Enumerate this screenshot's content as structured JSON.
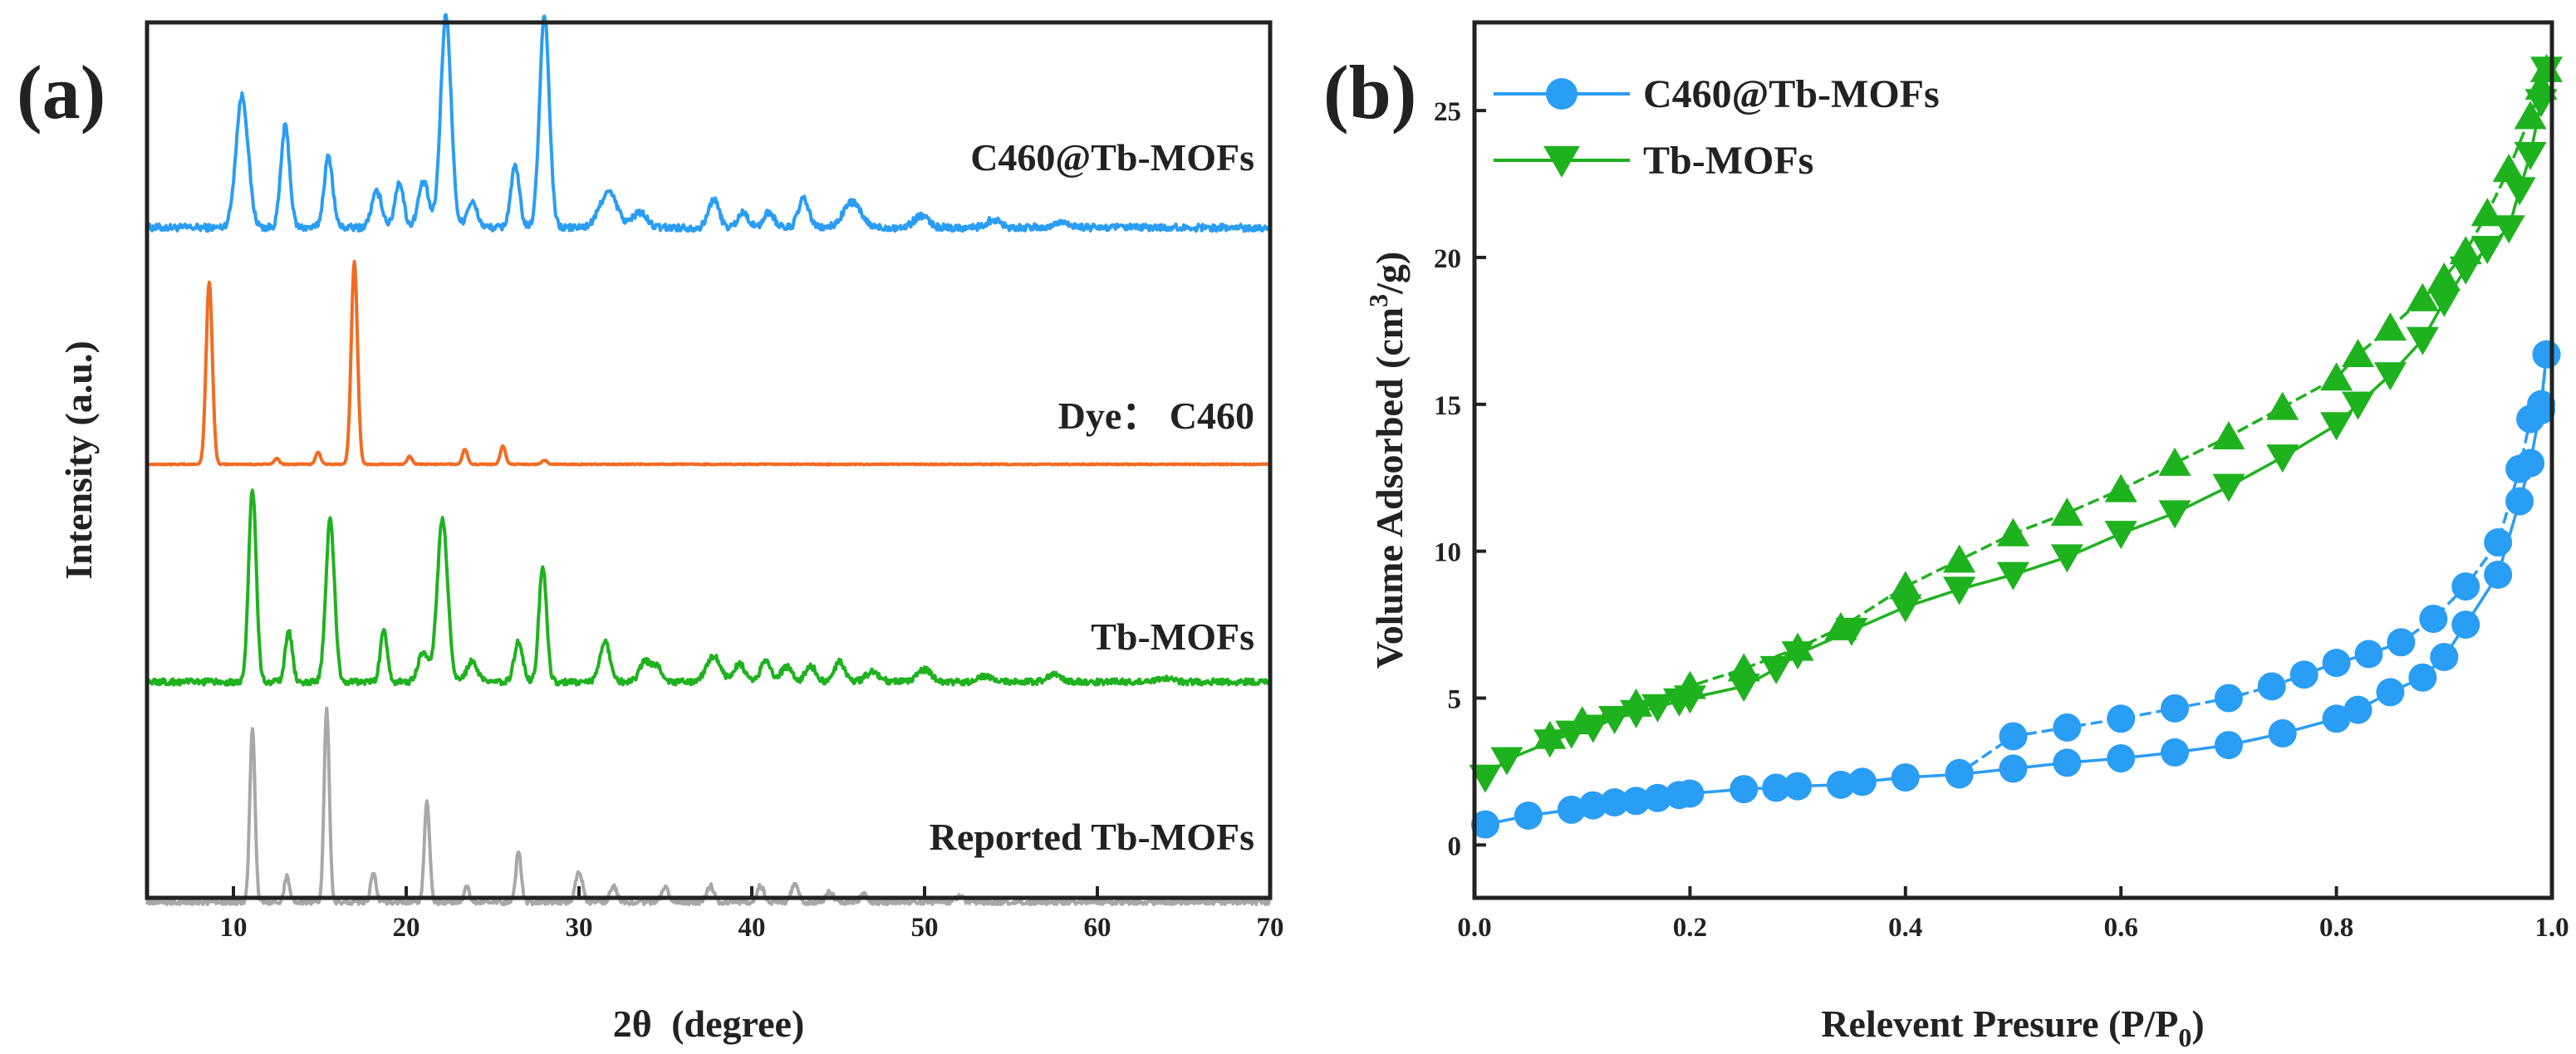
{
  "chart_data": [
    {
      "panel_label": "(a)",
      "type": "line",
      "xlabel_main": "2θ",
      "xlabel_unit": "(degree)",
      "ylabel": "Intensity (a.u.)",
      "xlim": [
        5,
        70
      ],
      "xticks": [
        "10",
        "20",
        "30",
        "40",
        "50",
        "60",
        "70"
      ],
      "grid": false,
      "series": [
        {
          "name": "C460@Tb-MOFs",
          "color": "#2a9df4",
          "baseline": 300,
          "noise": 0.35,
          "peaks": [
            [
              10.5,
              13,
              0.35
            ],
            [
              13.0,
              10,
              0.25
            ],
            [
              15.5,
              7,
              0.25
            ],
            [
              18.3,
              3.5,
              0.3
            ],
            [
              19.6,
              4.5,
              0.25
            ],
            [
              21.0,
              4.5,
              0.3
            ],
            [
              22.3,
              21,
              0.3
            ],
            [
              23.8,
              2.5,
              0.3
            ],
            [
              26.3,
              6,
              0.25
            ],
            [
              28.0,
              21,
              0.28
            ],
            [
              31.7,
              3.5,
              0.5
            ],
            [
              33.5,
              1.5,
              0.4
            ],
            [
              37.8,
              2.8,
              0.3
            ],
            [
              39.5,
              1.5,
              0.3
            ],
            [
              41.0,
              1.5,
              0.3
            ],
            [
              43.0,
              2.8,
              0.3
            ],
            [
              45.8,
              2.5,
              0.5
            ],
            [
              49.8,
              1.2,
              0.4
            ],
            [
              54.0,
              0.8,
              0.4
            ],
            [
              58.0,
              0.6,
              0.4
            ]
          ]
        },
        {
          "name": "Dye： C460",
          "color": "#f26b21",
          "baseline": 200,
          "noise": 0.05,
          "peaks": [
            [
              8.6,
              18,
              0.18
            ],
            [
              12.5,
              0.6,
              0.15
            ],
            [
              14.9,
              1.2,
              0.15
            ],
            [
              17.0,
              20,
              0.18
            ],
            [
              20.2,
              0.8,
              0.15
            ],
            [
              23.4,
              1.5,
              0.15
            ],
            [
              25.6,
              1.8,
              0.15
            ],
            [
              28.0,
              0.4,
              0.15
            ]
          ]
        },
        {
          "name": "Tb-MOFs",
          "color": "#1fb21f",
          "baseline": 100,
          "noise": 0.3,
          "peaks": [
            [
              11.1,
              19,
              0.22
            ],
            [
              13.2,
              5,
              0.2
            ],
            [
              15.6,
              16,
              0.25
            ],
            [
              18.7,
              5,
              0.2
            ],
            [
              21.0,
              3,
              0.3
            ],
            [
              22.1,
              16,
              0.3
            ],
            [
              23.8,
              2,
              0.3
            ],
            [
              26.5,
              4,
              0.25
            ],
            [
              27.9,
              11.5,
              0.22
            ],
            [
              31.5,
              4,
              0.3
            ],
            [
              33.8,
              2,
              0.3
            ],
            [
              34.5,
              1.5,
              0.3
            ],
            [
              37.8,
              2.5,
              0.4
            ],
            [
              39.3,
              1.8,
              0.3
            ],
            [
              40.8,
              2,
              0.3
            ],
            [
              42.0,
              1.5,
              0.3
            ],
            [
              43.4,
              1.6,
              0.3
            ],
            [
              45.1,
              2,
              0.3
            ],
            [
              47.0,
              1.0,
              0.4
            ],
            [
              50.0,
              1.2,
              0.4
            ],
            [
              53.5,
              0.6,
              0.4
            ],
            [
              57.5,
              0.8,
              0.4
            ],
            [
              64.0,
              0.4,
              0.4
            ]
          ]
        },
        {
          "name": "Reported Tb-MOFs",
          "color": "#a8a8a8",
          "baseline": 0,
          "noise": 0.25,
          "peaks": [
            [
              11.1,
              17,
              0.15
            ],
            [
              13.1,
              2.5,
              0.15
            ],
            [
              15.4,
              19,
              0.15
            ],
            [
              18.1,
              3,
              0.15
            ],
            [
              21.2,
              10,
              0.15
            ],
            [
              23.5,
              1.5,
              0.15
            ],
            [
              26.5,
              5,
              0.15
            ],
            [
              30.0,
              3,
              0.2
            ],
            [
              32.0,
              1.5,
              0.2
            ],
            [
              35.0,
              1.5,
              0.2
            ],
            [
              37.6,
              1.6,
              0.2
            ],
            [
              40.5,
              1.6,
              0.2
            ],
            [
              42.5,
              1.8,
              0.2
            ],
            [
              44.5,
              1.0,
              0.2
            ],
            [
              46.5,
              0.8,
              0.2
            ],
            [
              52.0,
              0.6,
              0.2
            ]
          ]
        }
      ]
    },
    {
      "panel_label": "(b)",
      "type": "line",
      "xlabel_main": "Relevent Presure (P/P",
      "xlabel_sub": "0",
      "xlabel_end": ")",
      "ylabel_main": "Volume Adsorbed (cm",
      "ylabel_sup": "3",
      "ylabel_end": "/g)",
      "xlim": [
        0.0,
        1.0
      ],
      "ylim": [
        -1.8,
        28
      ],
      "xticks": [
        "0.0",
        "0.2",
        "0.4",
        "0.6",
        "0.8",
        "1.0"
      ],
      "yticks": [
        "0",
        "5",
        "10",
        "15",
        "20",
        "25"
      ],
      "grid": false,
      "legend_position": "top-left",
      "series": [
        {
          "name": "C460@Tb-MOFs",
          "color": "#2a9df4",
          "marker": "circle",
          "adsorption": [
            [
              0.01,
              0.7
            ],
            [
              0.05,
              1.0
            ],
            [
              0.09,
              1.2
            ],
            [
              0.11,
              1.35
            ],
            [
              0.13,
              1.45
            ],
            [
              0.15,
              1.5
            ],
            [
              0.17,
              1.6
            ],
            [
              0.19,
              1.7
            ],
            [
              0.2,
              1.75
            ],
            [
              0.25,
              1.9
            ],
            [
              0.28,
              1.95
            ],
            [
              0.3,
              2.0
            ],
            [
              0.34,
              2.05
            ],
            [
              0.36,
              2.15
            ],
            [
              0.4,
              2.3
            ],
            [
              0.45,
              2.4
            ],
            [
              0.5,
              2.6
            ],
            [
              0.55,
              2.8
            ],
            [
              0.6,
              2.95
            ],
            [
              0.65,
              3.15
            ],
            [
              0.7,
              3.4
            ],
            [
              0.75,
              3.8
            ],
            [
              0.8,
              4.3
            ],
            [
              0.82,
              4.6
            ],
            [
              0.85,
              5.2
            ],
            [
              0.88,
              5.7
            ],
            [
              0.9,
              6.4
            ],
            [
              0.92,
              7.5
            ],
            [
              0.95,
              9.2
            ],
            [
              0.97,
              11.7
            ],
            [
              0.98,
              13.0
            ],
            [
              0.99,
              15.0
            ],
            [
              0.995,
              16.7
            ]
          ],
          "desorption": [
            [
              0.995,
              16.7
            ],
            [
              0.99,
              14.8
            ],
            [
              0.98,
              14.5
            ],
            [
              0.97,
              12.8
            ],
            [
              0.95,
              10.3
            ],
            [
              0.92,
              8.8
            ],
            [
              0.89,
              7.7
            ],
            [
              0.86,
              6.9
            ],
            [
              0.83,
              6.5
            ],
            [
              0.8,
              6.2
            ],
            [
              0.77,
              5.8
            ],
            [
              0.74,
              5.4
            ],
            [
              0.7,
              5.0
            ],
            [
              0.65,
              4.65
            ],
            [
              0.6,
              4.3
            ],
            [
              0.55,
              4.0
            ],
            [
              0.5,
              3.7
            ],
            [
              0.45,
              2.45
            ]
          ]
        },
        {
          "name": "Tb-MOFs",
          "color": "#1fb21f",
          "marker": "triangle",
          "adsorption": [
            [
              0.01,
              2.3
            ],
            [
              0.03,
              2.9
            ],
            [
              0.07,
              3.5
            ],
            [
              0.09,
              3.8
            ],
            [
              0.11,
              4.0
            ],
            [
              0.13,
              4.3
            ],
            [
              0.15,
              4.5
            ],
            [
              0.17,
              4.7
            ],
            [
              0.19,
              4.9
            ],
            [
              0.2,
              5.0
            ],
            [
              0.25,
              5.4
            ],
            [
              0.28,
              6.0
            ],
            [
              0.3,
              6.5
            ],
            [
              0.35,
              7.3
            ],
            [
              0.4,
              8.1
            ],
            [
              0.45,
              8.7
            ],
            [
              0.5,
              9.2
            ],
            [
              0.55,
              9.8
            ],
            [
              0.6,
              10.6
            ],
            [
              0.65,
              11.3
            ],
            [
              0.7,
              12.2
            ],
            [
              0.75,
              13.2
            ],
            [
              0.8,
              14.3
            ],
            [
              0.82,
              15.0
            ],
            [
              0.85,
              16.0
            ],
            [
              0.88,
              17.2
            ],
            [
              0.9,
              18.5
            ],
            [
              0.92,
              19.6
            ],
            [
              0.94,
              20.3
            ],
            [
              0.96,
              21.0
            ],
            [
              0.97,
              22.3
            ],
            [
              0.98,
              23.5
            ],
            [
              0.99,
              25.3
            ],
            [
              0.995,
              26.4
            ]
          ],
          "desorption": [
            [
              0.995,
              26.4
            ],
            [
              0.99,
              25.8
            ],
            [
              0.98,
              24.8
            ],
            [
              0.96,
              23.0
            ],
            [
              0.94,
              21.5
            ],
            [
              0.92,
              20.2
            ],
            [
              0.9,
              19.3
            ],
            [
              0.88,
              18.6
            ],
            [
              0.85,
              17.6
            ],
            [
              0.82,
              16.7
            ],
            [
              0.8,
              15.9
            ],
            [
              0.75,
              14.9
            ],
            [
              0.7,
              13.9
            ],
            [
              0.65,
              13.0
            ],
            [
              0.6,
              12.1
            ],
            [
              0.55,
              11.3
            ],
            [
              0.5,
              10.6
            ],
            [
              0.45,
              9.7
            ],
            [
              0.4,
              8.8
            ],
            [
              0.34,
              7.4
            ],
            [
              0.3,
              6.7
            ],
            [
              0.25,
              6.0
            ],
            [
              0.2,
              5.4
            ],
            [
              0.15,
              4.8
            ],
            [
              0.1,
              4.2
            ],
            [
              0.07,
              3.7
            ]
          ]
        }
      ]
    }
  ]
}
